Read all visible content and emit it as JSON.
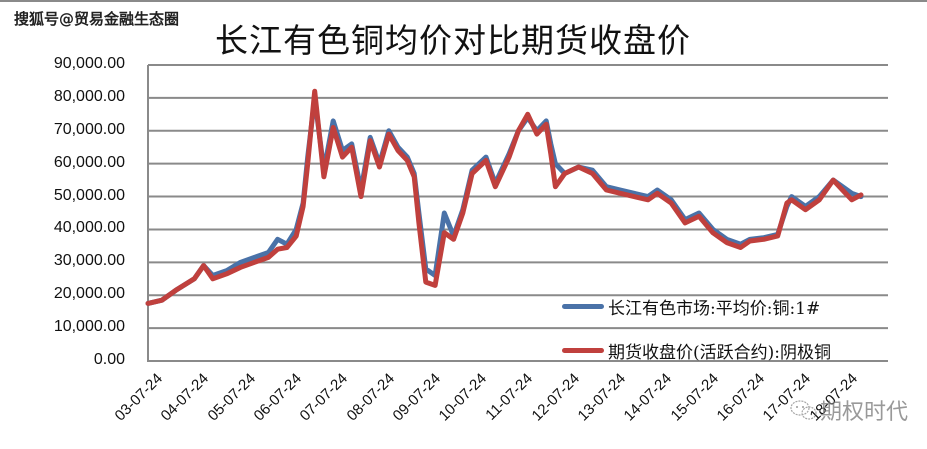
{
  "source_tag": "搜狐号@贸易金融生态圈",
  "watermark": {
    "icon": "wechat-icon",
    "text": "期权时代"
  },
  "colors": {
    "blue_series": "#4a72a8",
    "red_series": "#c0403d",
    "grid": "#8a8a8a",
    "axis": "#8a8a8a"
  },
  "chart_data": {
    "type": "line",
    "title": "长江有色铜均价对比期货收盘价",
    "xlabel": "",
    "ylabel": "",
    "ylim": [
      0,
      90000
    ],
    "grid": true,
    "legend_position": "lower-right inside",
    "y_ticks": [
      "0.00",
      "10,000.00",
      "20,000.00",
      "30,000.00",
      "40,000.00",
      "50,000.00",
      "60,000.00",
      "70,000.00",
      "80,000.00",
      "90,000.00"
    ],
    "x_ticks": [
      "03-07-24",
      "04-07-24",
      "05-07-24",
      "06-07-24",
      "07-07-24",
      "08-07-24",
      "09-07-24",
      "10-07-24",
      "11-07-24",
      "12-07-24",
      "13-07-24",
      "14-07-24",
      "15-07-24",
      "16-07-24",
      "17-07-24",
      "18-07-24"
    ],
    "x": [
      2003.0,
      2003.3,
      2003.6,
      2004.0,
      2004.2,
      2004.4,
      2004.7,
      2005.0,
      2005.3,
      2005.6,
      2005.8,
      2006.0,
      2006.2,
      2006.35,
      2006.45,
      2006.6,
      2006.8,
      2007.0,
      2007.2,
      2007.4,
      2007.6,
      2007.8,
      2008.0,
      2008.2,
      2008.4,
      2008.6,
      2008.75,
      2008.85,
      2009.0,
      2009.2,
      2009.4,
      2009.6,
      2009.8,
      2010.0,
      2010.3,
      2010.5,
      2010.8,
      2011.0,
      2011.2,
      2011.4,
      2011.6,
      2011.7,
      2011.8,
      2012.0,
      2012.3,
      2012.6,
      2012.9,
      2013.2,
      2013.5,
      2013.8,
      2014.0,
      2014.3,
      2014.6,
      2014.9,
      2015.2,
      2015.5,
      2015.8,
      2016.0,
      2016.3,
      2016.6,
      2016.8,
      2016.9,
      2017.2,
      2017.5,
      2017.8,
      2018.0,
      2018.2,
      2018.4
    ],
    "series": [
      {
        "name": "长江有色市场:平均价:铜:1#",
        "values": [
          17500,
          18500,
          21500,
          25000,
          29000,
          26000,
          27500,
          30000,
          31500,
          33000,
          37000,
          35500,
          40000,
          48000,
          62000,
          80000,
          58000,
          73000,
          64000,
          66000,
          52000,
          68000,
          60000,
          70000,
          65000,
          62000,
          57000,
          45000,
          28000,
          26000,
          45000,
          38000,
          46000,
          58000,
          62000,
          54000,
          63000,
          70000,
          74000,
          70000,
          73000,
          66000,
          60000,
          57000,
          59000,
          58000,
          53000,
          52000,
          51000,
          50000,
          52000,
          49000,
          43000,
          45000,
          40000,
          37000,
          35500,
          37000,
          37500,
          38500,
          47000,
          50000,
          47000,
          50000,
          55000,
          53000,
          51000,
          50000
        ]
      },
      {
        "name": "期货收盘价(活跃合约):阴极铜",
        "values": [
          17500,
          18500,
          21500,
          25000,
          29000,
          25000,
          26500,
          28500,
          30000,
          31500,
          34000,
          34500,
          38000,
          47000,
          60000,
          82000,
          56000,
          71000,
          62000,
          65000,
          50000,
          67000,
          59000,
          69000,
          64000,
          61000,
          56000,
          42000,
          24000,
          23000,
          39000,
          37000,
          45000,
          57000,
          61000,
          53000,
          62000,
          70000,
          75000,
          69000,
          72000,
          63000,
          53000,
          57000,
          59000,
          57000,
          52000,
          51000,
          50000,
          49000,
          51000,
          48000,
          42000,
          44000,
          39000,
          36000,
          34500,
          36500,
          37000,
          38000,
          48000,
          49000,
          46000,
          49000,
          55000,
          52000,
          49000,
          50500
        ]
      }
    ]
  },
  "legend": [
    {
      "label": "长江有色市场:平均价:铜:1#",
      "color": "#4a72a8"
    },
    {
      "label": "期货收盘价(活跃合约):阴极铜",
      "color": "#c0403d"
    }
  ]
}
